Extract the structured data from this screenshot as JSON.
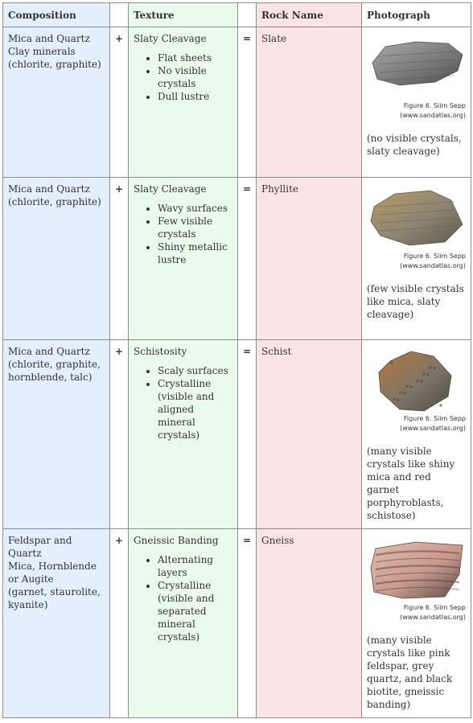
{
  "headers": {
    "composition": "Composition",
    "texture": "Texture",
    "rock_name": "Rock Name",
    "photograph": "Photograph"
  },
  "symbols": {
    "plus": "+",
    "equals": "="
  },
  "rows": [
    {
      "composition": "Mica and Quartz\nClay minerals\n(chlorite, graphite)",
      "texture_title": "Slaty Cleavage",
      "texture_items": [
        "Flat sheets",
        "No visible crystals",
        "Dull lustre"
      ],
      "rock_name": "Slate",
      "credit_line1": "Figure 6. Siim Sepp",
      "credit_line2": "(www.sandatlas.org)",
      "caption": "(no visible crystals, slaty cleavage)",
      "photo_icon": "slate-rock-photo",
      "colors": {
        "base": "#7a7a7a",
        "light": "#a9a9a9",
        "dark": "#4d4d4d"
      }
    },
    {
      "composition": "Mica and Quartz\n(chlorite, graphite)",
      "texture_title": "Slaty Cleavage",
      "texture_items": [
        "Wavy surfaces",
        "Few visible crystals",
        "Shiny metallic lustre"
      ],
      "rock_name": "Phyllite",
      "credit_line1": "Figure 6. Siim Sepp",
      "credit_line2": "(www.sandatlas.org)",
      "caption": "(few visible crystals like mica, slaty cleavage)",
      "photo_icon": "phyllite-rock-photo",
      "colors": {
        "base": "#8a8574",
        "light": "#b89a62",
        "dark": "#5c584d"
      }
    },
    {
      "composition": "Mica and Quartz\n(chlorite, graphite, hornblende, talc)",
      "texture_title": "Schistosity",
      "texture_items": [
        "Scaly surfaces",
        "Crystalline (visible and aligned mineral crystals)"
      ],
      "rock_name": "Schist",
      "credit_line1": "Figure 6. Siim Sepp",
      "credit_line2": "(www.sandatlas.org)",
      "caption": "(many visible crystals like shiny mica and red garnet porphyroblasts, schistose)",
      "photo_icon": "schist-rock-photo",
      "colors": {
        "base": "#7d7568",
        "light": "#b5773a",
        "dark": "#4f4a42"
      }
    },
    {
      "composition": "Feldspar and Quartz\nMica, Hornblende or Augite\n(garnet, staurolite, kyanite)",
      "texture_title": "Gneissic Banding",
      "texture_items": [
        "Alternating layers",
        "Crystalline (visible and separated mineral crystals)"
      ],
      "rock_name": "Gneiss",
      "credit_line1": "Figure 6. Siim Sepp",
      "credit_line2": "(www.sandatlas.org)",
      "caption": "(many visible crystals like pink feldspar, grey quartz, and black biotite, gneissic banding)",
      "photo_icon": "gneiss-rock-photo",
      "colors": {
        "base": "#c99a8c",
        "light": "#e0bcae",
        "dark": "#5a4a46"
      }
    }
  ]
}
